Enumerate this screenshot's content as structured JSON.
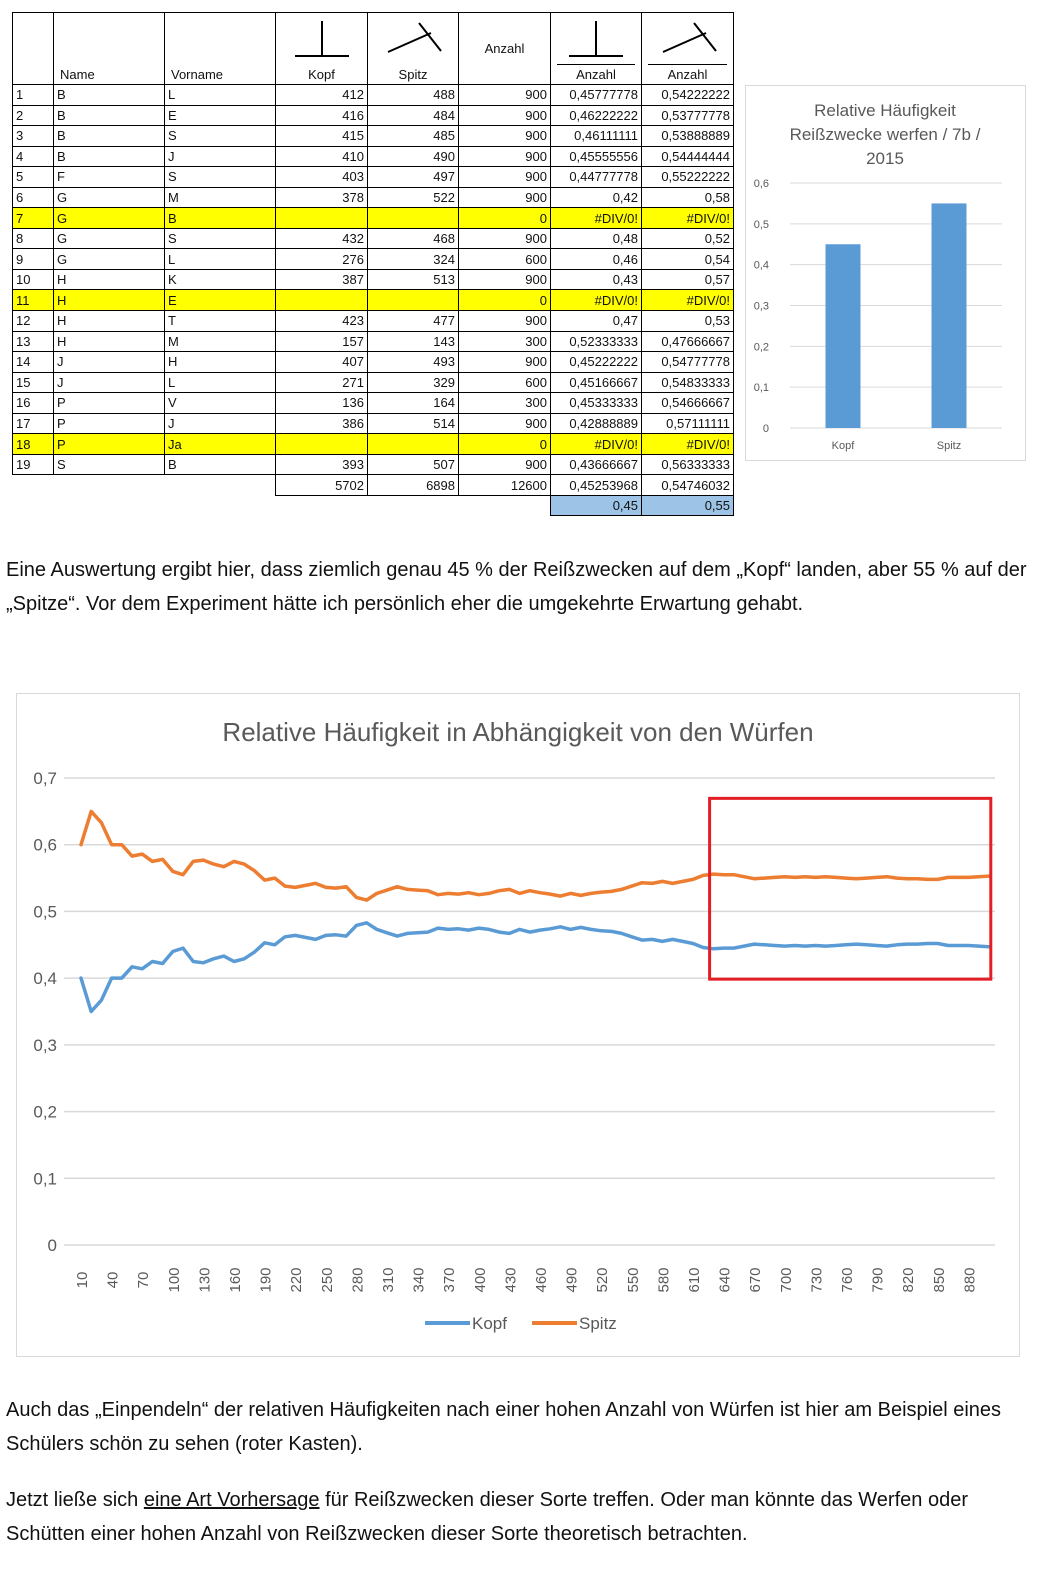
{
  "table": {
    "headers": {
      "name": "Name",
      "vorname": "Vorname",
      "kopf": "Kopf",
      "spitz": "Spitz",
      "anzahl": "Anzahl",
      "anzahl_kopf": "Anzahl",
      "anzahl_spitz": "Anzahl"
    },
    "rows": [
      {
        "nr": "1",
        "name": "B",
        "vorname": "L",
        "kopf": "412",
        "spitz": "488",
        "anzahl": "900",
        "rel_kopf": "0,45777778",
        "rel_spitz": "0,54222222",
        "highlight": false
      },
      {
        "nr": "2",
        "name": "B",
        "vorname": "E",
        "kopf": "416",
        "spitz": "484",
        "anzahl": "900",
        "rel_kopf": "0,46222222",
        "rel_spitz": "0,53777778",
        "highlight": false
      },
      {
        "nr": "3",
        "name": "B",
        "vorname": "S",
        "kopf": "415",
        "spitz": "485",
        "anzahl": "900",
        "rel_kopf": "0,46111111",
        "rel_spitz": "0,53888889",
        "highlight": false
      },
      {
        "nr": "4",
        "name": "B",
        "vorname": "J",
        "kopf": "410",
        "spitz": "490",
        "anzahl": "900",
        "rel_kopf": "0,45555556",
        "rel_spitz": "0,54444444",
        "highlight": false
      },
      {
        "nr": "5",
        "name": "F",
        "vorname": "S",
        "kopf": "403",
        "spitz": "497",
        "anzahl": "900",
        "rel_kopf": "0,44777778",
        "rel_spitz": "0,55222222",
        "highlight": false
      },
      {
        "nr": "6",
        "name": "G",
        "vorname": "M",
        "kopf": "378",
        "spitz": "522",
        "anzahl": "900",
        "rel_kopf": "0,42",
        "rel_spitz": "0,58",
        "highlight": false
      },
      {
        "nr": "7",
        "name": "G",
        "vorname": "B",
        "kopf": "",
        "spitz": "",
        "anzahl": "0",
        "rel_kopf": "#DIV/0!",
        "rel_spitz": "#DIV/0!",
        "highlight": true
      },
      {
        "nr": "8",
        "name": "G",
        "vorname": "S",
        "kopf": "432",
        "spitz": "468",
        "anzahl": "900",
        "rel_kopf": "0,48",
        "rel_spitz": "0,52",
        "highlight": false
      },
      {
        "nr": "9",
        "name": "G",
        "vorname": "L",
        "kopf": "276",
        "spitz": "324",
        "anzahl": "600",
        "rel_kopf": "0,46",
        "rel_spitz": "0,54",
        "highlight": false
      },
      {
        "nr": "10",
        "name": "H",
        "vorname": "K",
        "kopf": "387",
        "spitz": "513",
        "anzahl": "900",
        "rel_kopf": "0,43",
        "rel_spitz": "0,57",
        "highlight": false
      },
      {
        "nr": "11",
        "name": "H",
        "vorname": "E",
        "kopf": "",
        "spitz": "",
        "anzahl": "0",
        "rel_kopf": "#DIV/0!",
        "rel_spitz": "#DIV/0!",
        "highlight": true
      },
      {
        "nr": "12",
        "name": "H",
        "vorname": "T",
        "kopf": "423",
        "spitz": "477",
        "anzahl": "900",
        "rel_kopf": "0,47",
        "rel_spitz": "0,53",
        "highlight": false
      },
      {
        "nr": "13",
        "name": "H",
        "vorname": "M",
        "kopf": "157",
        "spitz": "143",
        "anzahl": "300",
        "rel_kopf": "0,52333333",
        "rel_spitz": "0,47666667",
        "highlight": false
      },
      {
        "nr": "14",
        "name": "J",
        "vorname": "H",
        "kopf": "407",
        "spitz": "493",
        "anzahl": "900",
        "rel_kopf": "0,45222222",
        "rel_spitz": "0,54777778",
        "highlight": false
      },
      {
        "nr": "15",
        "name": "J",
        "vorname": "L",
        "kopf": "271",
        "spitz": "329",
        "anzahl": "600",
        "rel_kopf": "0,45166667",
        "rel_spitz": "0,54833333",
        "highlight": false
      },
      {
        "nr": "16",
        "name": "P",
        "vorname": "V",
        "kopf": "136",
        "spitz": "164",
        "anzahl": "300",
        "rel_kopf": "0,45333333",
        "rel_spitz": "0,54666667",
        "highlight": false
      },
      {
        "nr": "17",
        "name": "P",
        "vorname": "J",
        "kopf": "386",
        "spitz": "514",
        "anzahl": "900",
        "rel_kopf": "0,42888889",
        "rel_spitz": "0,57111111",
        "highlight": false
      },
      {
        "nr": "18",
        "name": "P",
        "vorname": "Ja",
        "kopf": "",
        "spitz": "",
        "anzahl": "0",
        "rel_kopf": "#DIV/0!",
        "rel_spitz": "#DIV/0!",
        "highlight": true
      },
      {
        "nr": "19",
        "name": "S",
        "vorname": "B",
        "kopf": "393",
        "spitz": "507",
        "anzahl": "900",
        "rel_kopf": "0,43666667",
        "rel_spitz": "0,56333333",
        "highlight": false
      }
    ],
    "totals": {
      "kopf": "5702",
      "spitz": "6898",
      "anzahl": "12600",
      "rel_kopf": "0,45253968",
      "rel_spitz": "0,54746032"
    },
    "rounded": {
      "rel_kopf": "0,45",
      "rel_spitz": "0,55"
    }
  },
  "chart_data": [
    {
      "type": "bar",
      "title": "Relative Häufigkeit Reißzwecke werfen / 7b / 2015",
      "title_lines": [
        "Relative Häufigkeit",
        "Reißzwecke werfen / 7b /",
        "2015"
      ],
      "categories": [
        "Kopf",
        "Spitz"
      ],
      "values": [
        0.45,
        0.55
      ],
      "ylim": [
        0,
        0.6
      ],
      "yticks": [
        "0",
        "0,1",
        "0,2",
        "0,3",
        "0,4",
        "0,5",
        "0,6"
      ],
      "grid": true,
      "bar_color": "#5b9bd5"
    },
    {
      "type": "line",
      "title": "Relative Häufigkeit in Abhängigkeit von den Würfen",
      "x": [
        10,
        20,
        30,
        40,
        50,
        60,
        70,
        80,
        90,
        100,
        110,
        120,
        130,
        140,
        150,
        160,
        170,
        180,
        190,
        200,
        210,
        220,
        230,
        240,
        250,
        260,
        270,
        280,
        290,
        300,
        310,
        320,
        330,
        340,
        350,
        360,
        370,
        380,
        390,
        400,
        410,
        420,
        430,
        440,
        450,
        460,
        470,
        480,
        490,
        500,
        510,
        520,
        530,
        540,
        550,
        560,
        570,
        580,
        590,
        600,
        610,
        620,
        630,
        640,
        650,
        660,
        670,
        680,
        690,
        700,
        710,
        720,
        730,
        740,
        750,
        760,
        770,
        780,
        790,
        800,
        810,
        820,
        830,
        840,
        850,
        860,
        870,
        880,
        890,
        900
      ],
      "xticks": [
        "10",
        "40",
        "70",
        "100",
        "130",
        "160",
        "190",
        "220",
        "250",
        "280",
        "310",
        "340",
        "370",
        "400",
        "430",
        "460",
        "490",
        "520",
        "550",
        "580",
        "610",
        "640",
        "670",
        "700",
        "730",
        "760",
        "790",
        "820",
        "850",
        "880"
      ],
      "yticks": [
        "0",
        "0,1",
        "0,2",
        "0,3",
        "0,4",
        "0,5",
        "0,6",
        "0,7"
      ],
      "ylim": [
        0,
        0.7
      ],
      "grid": true,
      "legend_position": "bottom",
      "series": [
        {
          "name": "Kopf",
          "color": "#5b9bd5",
          "values": [
            0.4,
            0.35,
            0.367,
            0.4,
            0.4,
            0.417,
            0.414,
            0.425,
            0.422,
            0.44,
            0.445,
            0.425,
            0.423,
            0.429,
            0.433,
            0.425,
            0.429,
            0.439,
            0.453,
            0.45,
            0.462,
            0.464,
            0.461,
            0.458,
            0.464,
            0.465,
            0.463,
            0.479,
            0.483,
            0.473,
            0.468,
            0.463,
            0.467,
            0.468,
            0.469,
            0.475,
            0.473,
            0.474,
            0.472,
            0.475,
            0.473,
            0.469,
            0.467,
            0.473,
            0.469,
            0.472,
            0.474,
            0.477,
            0.473,
            0.476,
            0.473,
            0.471,
            0.47,
            0.467,
            0.462,
            0.457,
            0.458,
            0.455,
            0.458,
            0.455,
            0.452,
            0.446,
            0.444,
            0.445,
            0.445,
            0.448,
            0.451,
            0.45,
            0.449,
            0.448,
            0.449,
            0.448,
            0.449,
            0.448,
            0.449,
            0.45,
            0.451,
            0.45,
            0.449,
            0.448,
            0.45,
            0.451,
            0.451,
            0.452,
            0.452,
            0.449,
            0.449,
            0.449,
            0.448,
            0.447
          ]
        },
        {
          "name": "Spitz",
          "color": "#ed7d31",
          "values": [
            0.6,
            0.65,
            0.633,
            0.6,
            0.6,
            0.583,
            0.586,
            0.575,
            0.578,
            0.56,
            0.555,
            0.575,
            0.577,
            0.571,
            0.567,
            0.575,
            0.571,
            0.561,
            0.547,
            0.55,
            0.538,
            0.536,
            0.539,
            0.542,
            0.536,
            0.535,
            0.537,
            0.521,
            0.517,
            0.527,
            0.532,
            0.537,
            0.533,
            0.532,
            0.531,
            0.525,
            0.527,
            0.526,
            0.528,
            0.525,
            0.527,
            0.531,
            0.533,
            0.527,
            0.531,
            0.528,
            0.526,
            0.523,
            0.527,
            0.524,
            0.527,
            0.529,
            0.53,
            0.533,
            0.538,
            0.543,
            0.542,
            0.545,
            0.542,
            0.545,
            0.548,
            0.554,
            0.556,
            0.555,
            0.555,
            0.552,
            0.549,
            0.55,
            0.551,
            0.552,
            0.551,
            0.552,
            0.551,
            0.552,
            0.551,
            0.55,
            0.549,
            0.55,
            0.551,
            0.552,
            0.55,
            0.549,
            0.549,
            0.548,
            0.548,
            0.551,
            0.551,
            0.551,
            0.552,
            0.553
          ]
        }
      ],
      "highlight_box": {
        "x_from": 640,
        "x_to": 900,
        "y_from": 0.4,
        "y_to": 0.65,
        "color": "#e31e24"
      }
    }
  ],
  "text": {
    "para1": "Eine Auswertung ergibt hier, dass ziemlich genau 45 % der Reißzwecken auf dem „Kopf“ landen, aber 55 % auf der „Spitze“. Vor dem Experiment hätte ich persönlich eher die umgekehrte Erwartung gehabt.",
    "para2": "Auch das „Einpendeln“ der relativen Häufigkeiten nach einer hohen Anzahl von Würfen ist hier am Beispiel eines Schülers schön zu sehen (roter Kasten).",
    "para3_before": "Jetzt ließe sich ",
    "para3_link": "eine Art Vorhersage",
    "para3_after": " für Reißzwecken dieser Sorte treffen. Oder man könnte das Werfen oder Schütten einer hohen Anzahl von Reißzwecken dieser Sorte theoretisch betrachten."
  }
}
